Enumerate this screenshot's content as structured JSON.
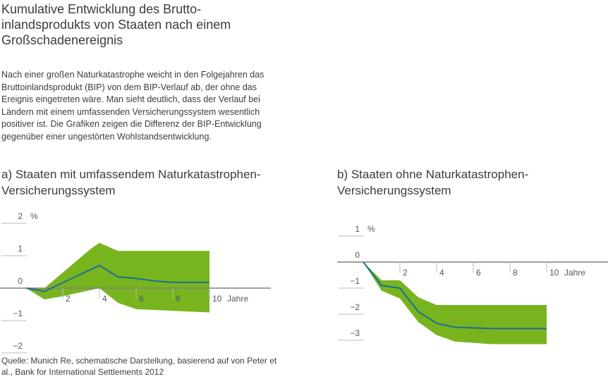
{
  "title": "Kumulative Entwicklung des Brutto-inlandsprodukts von Staaten nach einem Großschadenereignis",
  "description": "Nach einer großen Naturkatastrophe weicht in den Folgejahren das Bruttoinlandsprodukt (BIP) von dem BIP-Verlauf ab, der ohne das Ereignis eingetreten wäre. Man sieht deutlich, dass der Verlauf bei Ländern mit einem umfassenden Versicherungssystem wesentlich positiver ist. Die Grafiken zeigen die Differenz der BIP-Entwicklung gegenüber einer ungestörten Wohlstandsentwicklung.",
  "source": "Quelle: Munich Re, schematische Darstellung, basierend auf von Peter et al., Bank for International Settlements 2012",
  "colors": {
    "band": "#78b41e",
    "line": "#1a6e99",
    "axis": "#808080"
  },
  "chart_data": [
    {
      "type": "area",
      "title": "a) Staaten mit umfassendem Naturkatastrophen-Versicherungssystem",
      "xlabel": "Jahre",
      "ylabel": "%",
      "xlim": [
        0,
        10
      ],
      "ylim": [
        -2,
        2
      ],
      "xticks": [
        "2",
        "4",
        "6",
        "8",
        "10"
      ],
      "yticks": [
        "2",
        "1",
        "0",
        "−1",
        "−2"
      ],
      "mean": {
        "x": [
          0,
          1,
          4,
          5,
          6,
          7,
          8,
          10
        ],
        "y": [
          0,
          -0.1,
          0.7,
          0.35,
          0.3,
          0.22,
          0.18,
          0.18
        ]
      },
      "upper": {
        "x": [
          0,
          1,
          3.5,
          4,
          5,
          10
        ],
        "y": [
          0,
          0,
          1.2,
          1.4,
          1.15,
          1.15
        ]
      },
      "lower": {
        "x": [
          0,
          1,
          2,
          4,
          5,
          6,
          10
        ],
        "y": [
          0,
          -0.35,
          -0.25,
          0,
          -0.45,
          -0.65,
          -0.75
        ]
      }
    },
    {
      "type": "area",
      "title": "b) Staaten ohne Naturkatastrophen-Versicherungssystem",
      "xlabel": "Jahre",
      "ylabel": "%",
      "xlim": [
        0,
        10
      ],
      "ylim": [
        -3,
        1
      ],
      "xticks": [
        "2",
        "4",
        "6",
        "8",
        "10"
      ],
      "yticks": [
        "1",
        "0",
        "−1",
        "−2",
        "−3"
      ],
      "mean": {
        "x": [
          0,
          1,
          2,
          3,
          4,
          5,
          7,
          10
        ],
        "y": [
          0,
          -0.9,
          -1.0,
          -1.9,
          -2.35,
          -2.5,
          -2.55,
          -2.55
        ]
      },
      "upper": {
        "x": [
          0,
          1,
          2,
          3,
          4,
          10
        ],
        "y": [
          0,
          -0.7,
          -0.7,
          -1.35,
          -1.65,
          -1.65
        ]
      },
      "lower": {
        "x": [
          0,
          1,
          2,
          3,
          4,
          5,
          7,
          10
        ],
        "y": [
          0,
          -1.1,
          -1.4,
          -2.3,
          -2.8,
          -3.05,
          -3.15,
          -3.15
        ]
      }
    }
  ]
}
